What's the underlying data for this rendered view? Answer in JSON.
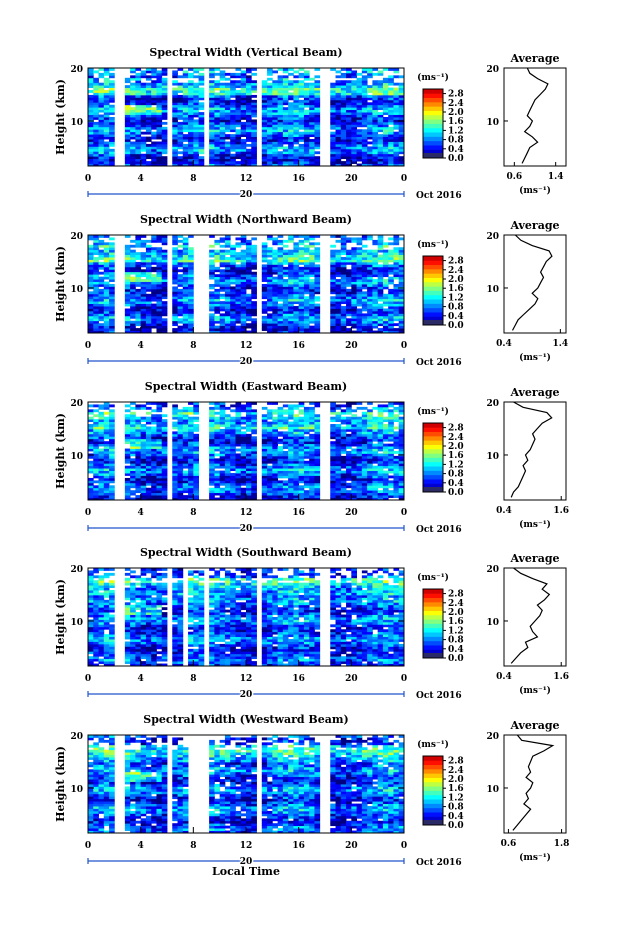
{
  "figure": {
    "date_label": "Oct 2016",
    "x_label": "Local Time",
    "y_label": "Height (km)",
    "unit_label": "(ms⁻¹)",
    "average_title": "Average"
  },
  "chart_data": [
    {
      "type": "heatmap",
      "title": "Spectral Width (Vertical Beam)",
      "ylabel": "Height (km)",
      "xlabel": "",
      "x_ticks": [
        "0",
        "4",
        "8",
        "12",
        "16",
        "20",
        "0"
      ],
      "x_day_label": "20",
      "y_ticks": [
        "20",
        "10"
      ],
      "ylim_km": [
        1.5,
        20
      ],
      "xlim_hours": [
        0,
        24
      ],
      "data_gaps_hours": [
        [
          2,
          2.6
        ],
        [
          6,
          6.3
        ],
        [
          8.8,
          9.3
        ],
        [
          13,
          13.3
        ],
        [
          17.8,
          18.5
        ]
      ],
      "colorbar": {
        "label": "(ms⁻¹)",
        "ticks": [
          "2.8",
          "2.4",
          "2.0",
          "1.6",
          "1.2",
          "0.8",
          "0.4",
          "0.0"
        ],
        "vmin": 0,
        "vmax": 3.0
      },
      "average_profile": {
        "title": "Average",
        "xlabel": "(ms⁻¹)",
        "x_ticks": [
          "0.6",
          "1.4"
        ],
        "xlim": [
          0.4,
          1.6
        ],
        "y_ticks": [
          "20",
          "10"
        ],
        "ylim_km": [
          1.5,
          20
        ],
        "height_km": [
          2,
          3,
          4,
          5,
          6,
          7,
          8,
          9,
          10,
          11,
          12,
          13,
          14,
          15,
          16,
          17,
          18,
          19,
          20
        ],
        "values": [
          0.75,
          0.8,
          0.85,
          0.9,
          1.05,
          0.95,
          0.8,
          0.9,
          0.95,
          0.85,
          0.9,
          0.95,
          1.0,
          1.1,
          1.2,
          1.25,
          1.05,
          0.9,
          0.85
        ]
      }
    },
    {
      "type": "heatmap",
      "title": "Spectral Width (Northward Beam)",
      "ylabel": "Height (km)",
      "xlabel": "",
      "x_ticks": [
        "0",
        "4",
        "8",
        "12",
        "16",
        "20",
        "0"
      ],
      "x_day_label": "20",
      "y_ticks": [
        "20",
        "10"
      ],
      "ylim_km": [
        1.5,
        20
      ],
      "xlim_hours": [
        0,
        24
      ],
      "data_gaps_hours": [
        [
          2,
          2.6
        ],
        [
          6,
          6.3
        ],
        [
          7.9,
          9.3
        ],
        [
          13,
          13.3
        ],
        [
          17.8,
          18.5
        ]
      ],
      "colorbar": {
        "label": "(ms⁻¹)",
        "ticks": [
          "2.8",
          "2.4",
          "2.0",
          "1.6",
          "1.2",
          "0.8",
          "0.4",
          "0.0"
        ],
        "vmin": 0,
        "vmax": 3.0
      },
      "average_profile": {
        "title": "Average",
        "xlabel": "(ms⁻¹)",
        "x_ticks": [
          "0.4",
          "1.4"
        ],
        "xlim": [
          0.4,
          1.5
        ],
        "y_ticks": [
          "20",
          "10"
        ],
        "ylim_km": [
          1.5,
          20
        ],
        "height_km": [
          2,
          3,
          4,
          5,
          6,
          7,
          8,
          9,
          10,
          11,
          12,
          13,
          14,
          15,
          16,
          17,
          18,
          19,
          20
        ],
        "values": [
          0.55,
          0.6,
          0.65,
          0.75,
          0.85,
          0.95,
          1.0,
          0.9,
          1.0,
          1.05,
          1.1,
          1.05,
          1.1,
          1.15,
          1.25,
          1.2,
          0.9,
          0.7,
          0.6
        ]
      }
    },
    {
      "type": "heatmap",
      "title": "Spectral Width (Eastward Beam)",
      "ylabel": "Height (km)",
      "xlabel": "",
      "x_ticks": [
        "0",
        "4",
        "8",
        "12",
        "16",
        "20",
        "0"
      ],
      "x_day_label": "20",
      "y_ticks": [
        "20",
        "10"
      ],
      "ylim_km": [
        1.5,
        20
      ],
      "xlim_hours": [
        0,
        24
      ],
      "data_gaps_hours": [
        [
          2,
          2.6
        ],
        [
          6,
          6.3
        ],
        [
          8.5,
          9.3
        ],
        [
          13,
          13.3
        ],
        [
          17.8,
          18.5
        ]
      ],
      "colorbar": {
        "label": "(ms⁻¹)",
        "ticks": [
          "2.8",
          "2.4",
          "2.0",
          "1.6",
          "1.2",
          "0.8",
          "0.4",
          "0.0"
        ],
        "vmin": 0,
        "vmax": 3.0
      },
      "average_profile": {
        "title": "Average",
        "xlabel": "(ms⁻¹)",
        "x_ticks": [
          "0.4",
          "1.6"
        ],
        "xlim": [
          0.4,
          1.7
        ],
        "y_ticks": [
          "20",
          "10"
        ],
        "ylim_km": [
          1.5,
          20
        ],
        "height_km": [
          2,
          3,
          4,
          5,
          6,
          7,
          8,
          9,
          10,
          11,
          12,
          13,
          14,
          15,
          16,
          17,
          18,
          19,
          20
        ],
        "values": [
          0.55,
          0.6,
          0.7,
          0.75,
          0.8,
          0.85,
          0.8,
          0.9,
          0.85,
          0.95,
          1.0,
          1.05,
          1.0,
          1.1,
          1.2,
          1.4,
          1.3,
          0.8,
          0.6
        ]
      }
    },
    {
      "type": "heatmap",
      "title": "Spectral Width (Southward Beam)",
      "ylabel": "Height (km)",
      "xlabel": "",
      "x_ticks": [
        "0",
        "4",
        "8",
        "12",
        "16",
        "20",
        "0"
      ],
      "x_day_label": "20",
      "y_ticks": [
        "20",
        "10"
      ],
      "ylim_km": [
        1.5,
        20
      ],
      "xlim_hours": [
        0,
        24
      ],
      "data_gaps_hours": [
        [
          2,
          2.6
        ],
        [
          6,
          6.3
        ],
        [
          7.3,
          7.6
        ],
        [
          8.8,
          9.3
        ],
        [
          13,
          13.3
        ],
        [
          17.8,
          18.5
        ]
      ],
      "colorbar": {
        "label": "(ms⁻¹)",
        "ticks": [
          "2.8",
          "2.4",
          "2.0",
          "1.6",
          "1.2",
          "0.8",
          "0.4",
          "0.0"
        ],
        "vmin": 0,
        "vmax": 3.0
      },
      "average_profile": {
        "title": "Average",
        "xlabel": "(ms⁻¹)",
        "x_ticks": [
          "0.4",
          "1.6"
        ],
        "xlim": [
          0.4,
          1.7
        ],
        "y_ticks": [
          "20",
          "10"
        ],
        "ylim_km": [
          1.5,
          20
        ],
        "height_km": [
          2,
          3,
          4,
          5,
          6,
          7,
          8,
          9,
          10,
          11,
          12,
          13,
          14,
          15,
          16,
          17,
          18,
          19,
          20
        ],
        "values": [
          0.55,
          0.65,
          0.75,
          0.9,
          0.85,
          1.1,
          1.0,
          0.95,
          1.05,
          1.15,
          1.2,
          1.1,
          1.25,
          1.35,
          1.2,
          1.3,
          1.0,
          0.75,
          0.6
        ]
      }
    },
    {
      "type": "heatmap",
      "title": "Spectral Width (Westward Beam)",
      "ylabel": "Height (km)",
      "xlabel": "Local Time",
      "x_ticks": [
        "0",
        "4",
        "8",
        "12",
        "16",
        "20",
        "0"
      ],
      "x_day_label": "20",
      "y_ticks": [
        "20",
        "10"
      ],
      "ylim_km": [
        1.5,
        20
      ],
      "xlim_hours": [
        0,
        24
      ],
      "data_gaps_hours": [
        [
          2,
          2.6
        ],
        [
          6,
          6.3
        ],
        [
          7.5,
          9.3
        ],
        [
          13,
          13.3
        ],
        [
          17.8,
          18.5
        ]
      ],
      "colorbar": {
        "label": "(ms⁻¹)",
        "ticks": [
          "2.8",
          "2.4",
          "2.0",
          "1.6",
          "1.2",
          "0.8",
          "0.4",
          "0.0"
        ],
        "vmin": 0,
        "vmax": 3.0
      },
      "average_profile": {
        "title": "Average",
        "xlabel": "(ms⁻¹)",
        "x_ticks": [
          "0.6",
          "1.8"
        ],
        "xlim": [
          0.5,
          1.9
        ],
        "y_ticks": [
          "20",
          "10"
        ],
        "ylim_km": [
          1.5,
          20
        ],
        "height_km": [
          2,
          3,
          4,
          5,
          6,
          7,
          8,
          9,
          10,
          11,
          12,
          13,
          14,
          15,
          16,
          17,
          18,
          19,
          20
        ],
        "values": [
          0.7,
          0.8,
          0.9,
          1.0,
          1.1,
          0.95,
          1.05,
          1.0,
          1.1,
          1.15,
          1.0,
          1.1,
          1.05,
          1.1,
          1.15,
          1.4,
          1.6,
          0.9,
          0.8
        ]
      }
    }
  ]
}
